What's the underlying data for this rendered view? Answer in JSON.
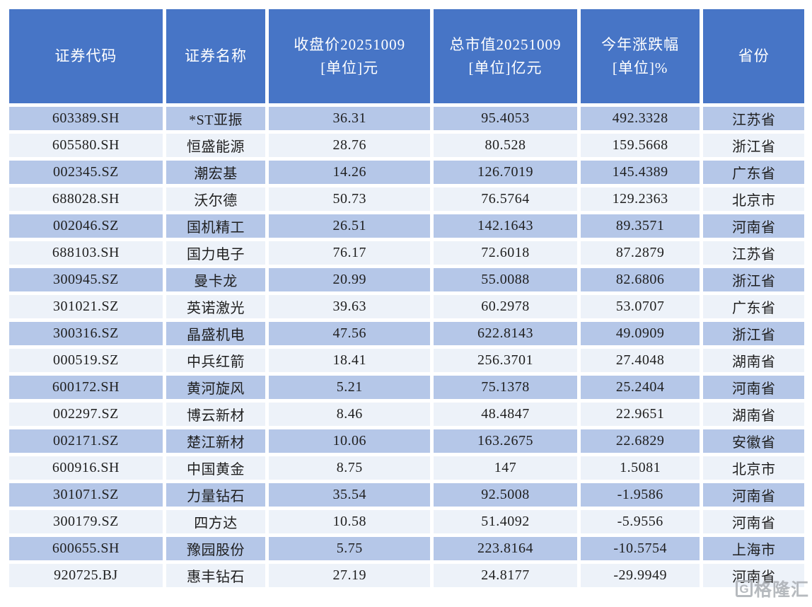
{
  "colors": {
    "header_bg": "#4775C6",
    "header_text": "#FFFFFF",
    "band_dark": "#B5C7E8",
    "band_light": "#EDF2F9",
    "body_text": "#1F1F1F",
    "watermark_gray": "#A7ABB0"
  },
  "watermark": {
    "logo_letter": "G",
    "text": "格隆汇"
  },
  "table": {
    "columns": [
      {
        "key": "code",
        "label": "证券代码"
      },
      {
        "key": "name",
        "label": "证券名称"
      },
      {
        "key": "close",
        "label": "收盘价20251009\n[单位]元"
      },
      {
        "key": "mktcap",
        "label": "总市值20251009\n[单位]亿元"
      },
      {
        "key": "change",
        "label": "今年涨跌幅\n[单位]%"
      },
      {
        "key": "province",
        "label": "省份"
      }
    ],
    "rows": [
      [
        "603389.SH",
        "*ST亚振",
        "36.31",
        "95.4053",
        "492.3328",
        "江苏省"
      ],
      [
        "605580.SH",
        "恒盛能源",
        "28.76",
        "80.528",
        "159.5668",
        "浙江省"
      ],
      [
        "002345.SZ",
        "潮宏基",
        "14.26",
        "126.7019",
        "145.4389",
        "广东省"
      ],
      [
        "688028.SH",
        "沃尔德",
        "50.73",
        "76.5764",
        "129.2363",
        "北京市"
      ],
      [
        "002046.SZ",
        "国机精工",
        "26.51",
        "142.1643",
        "89.3571",
        "河南省"
      ],
      [
        "688103.SH",
        "国力电子",
        "76.17",
        "72.6018",
        "87.2879",
        "江苏省"
      ],
      [
        "300945.SZ",
        "曼卡龙",
        "20.99",
        "55.0088",
        "82.6806",
        "浙江省"
      ],
      [
        "301021.SZ",
        "英诺激光",
        "39.63",
        "60.2978",
        "53.0707",
        "广东省"
      ],
      [
        "300316.SZ",
        "晶盛机电",
        "47.56",
        "622.8143",
        "49.0909",
        "浙江省"
      ],
      [
        "000519.SZ",
        "中兵红箭",
        "18.41",
        "256.3701",
        "27.4048",
        "湖南省"
      ],
      [
        "600172.SH",
        "黄河旋风",
        "5.21",
        "75.1378",
        "25.2404",
        "河南省"
      ],
      [
        "002297.SZ",
        "博云新材",
        "8.46",
        "48.4847",
        "22.9651",
        "湖南省"
      ],
      [
        "002171.SZ",
        "楚江新材",
        "10.06",
        "163.2675",
        "22.6829",
        "安徽省"
      ],
      [
        "600916.SH",
        "中国黄金",
        "8.75",
        "147",
        "1.5081",
        "北京市"
      ],
      [
        "301071.SZ",
        "力量钻石",
        "35.54",
        "92.5008",
        "-1.9586",
        "河南省"
      ],
      [
        "300179.SZ",
        "四方达",
        "10.58",
        "51.4092",
        "-5.9556",
        "河南省"
      ],
      [
        "600655.SH",
        "豫园股份",
        "5.75",
        "223.8164",
        "-10.5754",
        "上海市"
      ],
      [
        "920725.BJ",
        "惠丰钻石",
        "27.19",
        "24.8177",
        "-29.9949",
        "河南省"
      ]
    ]
  },
  "chart_data": {
    "type": "table",
    "title": "",
    "columns": [
      "证券代码",
      "证券名称",
      "收盘价20251009 [单位]元",
      "总市值20251009 [单位]亿元",
      "今年涨跌幅 [单位]%",
      "省份"
    ],
    "rows": [
      [
        "603389.SH",
        "*ST亚振",
        36.31,
        95.4053,
        492.3328,
        "江苏省"
      ],
      [
        "605580.SH",
        "恒盛能源",
        28.76,
        80.528,
        159.5668,
        "浙江省"
      ],
      [
        "002345.SZ",
        "潮宏基",
        14.26,
        126.7019,
        145.4389,
        "广东省"
      ],
      [
        "688028.SH",
        "沃尔德",
        50.73,
        76.5764,
        129.2363,
        "北京市"
      ],
      [
        "002046.SZ",
        "国机精工",
        26.51,
        142.1643,
        89.3571,
        "河南省"
      ],
      [
        "688103.SH",
        "国力电子",
        76.17,
        72.6018,
        87.2879,
        "江苏省"
      ],
      [
        "300945.SZ",
        "曼卡龙",
        20.99,
        55.0088,
        82.6806,
        "浙江省"
      ],
      [
        "301021.SZ",
        "英诺激光",
        39.63,
        60.2978,
        53.0707,
        "广东省"
      ],
      [
        "300316.SZ",
        "晶盛机电",
        47.56,
        622.8143,
        49.0909,
        "浙江省"
      ],
      [
        "000519.SZ",
        "中兵红箭",
        18.41,
        256.3701,
        27.4048,
        "湖南省"
      ],
      [
        "600172.SH",
        "黄河旋风",
        5.21,
        75.1378,
        25.2404,
        "河南省"
      ],
      [
        "002297.SZ",
        "博云新材",
        8.46,
        48.4847,
        22.9651,
        "湖南省"
      ],
      [
        "002171.SZ",
        "楚江新材",
        10.06,
        163.2675,
        22.6829,
        "安徽省"
      ],
      [
        "600916.SH",
        "中国黄金",
        8.75,
        147,
        1.5081,
        "北京市"
      ],
      [
        "301071.SZ",
        "力量钻石",
        35.54,
        92.5008,
        -1.9586,
        "河南省"
      ],
      [
        "300179.SZ",
        "四方达",
        10.58,
        51.4092,
        -5.9556,
        "河南省"
      ],
      [
        "600655.SH",
        "豫园股份",
        5.75,
        223.8164,
        -10.5754,
        "上海市"
      ],
      [
        "920725.BJ",
        "惠丰钻石",
        27.19,
        24.8177,
        -29.9949,
        "河南省"
      ]
    ]
  }
}
